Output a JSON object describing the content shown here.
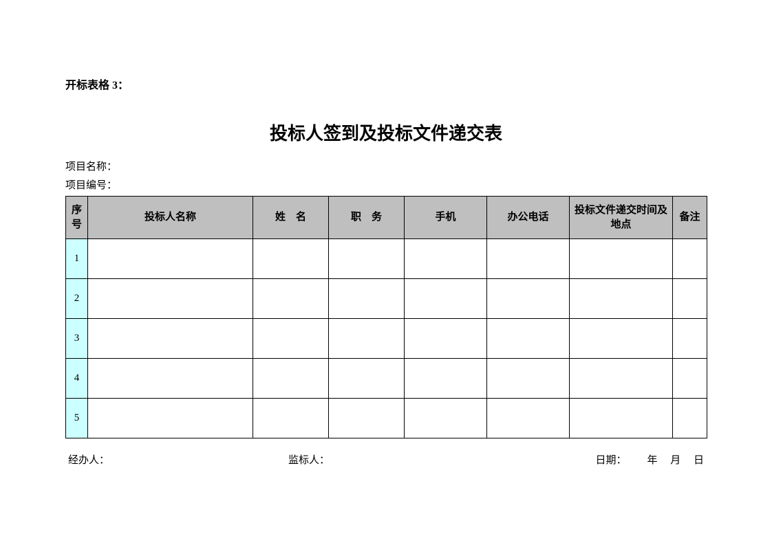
{
  "formLabel": "开标表格 3：",
  "title": "投标人签到及投标文件递交表",
  "meta": {
    "projectNameLabel": "项目名称：",
    "projectNumberLabel": "项目编号："
  },
  "table": {
    "columns": [
      {
        "key": "index",
        "label": "序号",
        "widthClass": "col-index"
      },
      {
        "key": "bidder",
        "label": "投标人名称",
        "widthClass": "col-bidder"
      },
      {
        "key": "name",
        "label": "姓　名",
        "widthClass": "col-name"
      },
      {
        "key": "duty",
        "label": "职　务",
        "widthClass": "col-duty"
      },
      {
        "key": "mobile",
        "label": "手机",
        "widthClass": "col-mobile"
      },
      {
        "key": "office",
        "label": "办公电话",
        "widthClass": "col-office"
      },
      {
        "key": "submit",
        "label": "投标文件递交时间及地点",
        "widthClass": "col-submit"
      },
      {
        "key": "remark",
        "label": "备注",
        "widthClass": "col-remark"
      }
    ],
    "rows": [
      {
        "index": "1",
        "bidder": "",
        "name": "",
        "duty": "",
        "mobile": "",
        "office": "",
        "submit": "",
        "remark": ""
      },
      {
        "index": "2",
        "bidder": "",
        "name": "",
        "duty": "",
        "mobile": "",
        "office": "",
        "submit": "",
        "remark": ""
      },
      {
        "index": "3",
        "bidder": "",
        "name": "",
        "duty": "",
        "mobile": "",
        "office": "",
        "submit": "",
        "remark": ""
      },
      {
        "index": "4",
        "bidder": "",
        "name": "",
        "duty": "",
        "mobile": "",
        "office": "",
        "submit": "",
        "remark": ""
      },
      {
        "index": "5",
        "bidder": "",
        "name": "",
        "duty": "",
        "mobile": "",
        "office": "",
        "submit": "",
        "remark": ""
      }
    ],
    "headerBackground": "#bfbfbf",
    "indexCellBackground": "#ccffff",
    "borderColor": "#000000",
    "headerRowHeight": 62,
    "bodyRowHeight": 58
  },
  "footer": {
    "handlerLabel": "经办人：",
    "supervisorLabel": "监标人：",
    "dateLabel": "日期：",
    "yearUnit": "年",
    "monthUnit": "月",
    "dayUnit": "日"
  },
  "colors": {
    "pageBackground": "#ffffff",
    "text": "#000000"
  },
  "fonts": {
    "titleFamily": "SimHei",
    "bodyFamily": "SimSun",
    "titleSize": 26,
    "bodySize": 15,
    "formLabelSize": 16
  }
}
